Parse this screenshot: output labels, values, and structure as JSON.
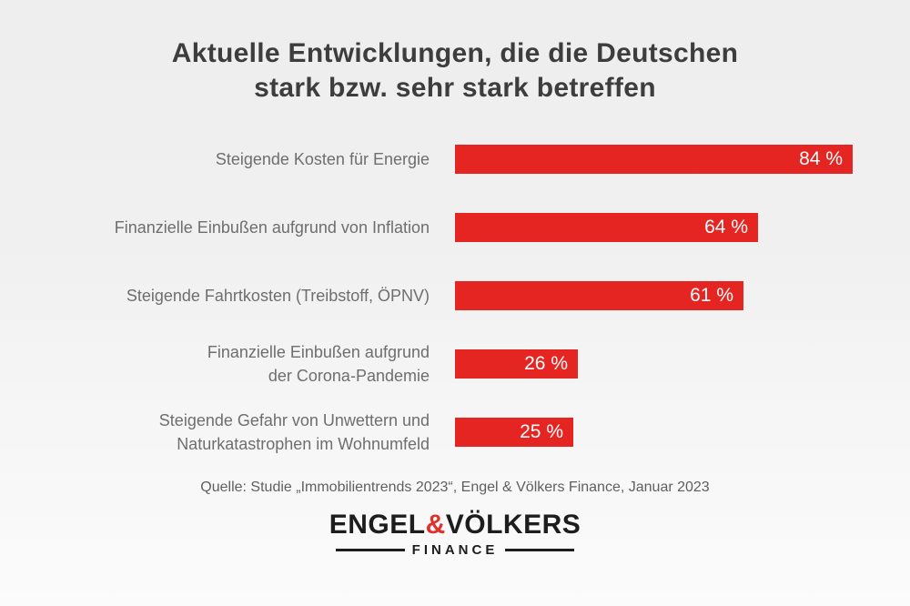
{
  "title": {
    "lines": [
      "Aktuelle Entwicklungen, die die Deutschen",
      "stark bzw. sehr stark betreffen"
    ]
  },
  "chart_data": {
    "type": "bar",
    "orientation": "horizontal",
    "title": "Aktuelle Entwicklungen, die die Deutschen stark bzw. sehr stark betreffen",
    "unit": "%",
    "xlim": [
      0,
      100
    ],
    "grid": false,
    "legend": false,
    "categories": [
      "Steigende Kosten für Energie",
      "Finanzielle Einbußen aufgrund von Inflation",
      "Steigende Fahrtkosten (Treibstoff, ÖPNV)",
      "Finanzielle Einbußen aufgrund der Corona-Pandemie",
      "Steigende Gefahr von Unwettern und Naturkatastrophen im Wohnumfeld"
    ],
    "values": [
      84,
      64,
      61,
      26,
      25
    ],
    "rows": [
      {
        "label_lines": [
          "Steigende Kosten für Energie"
        ],
        "value": 84,
        "value_label": "84 %"
      },
      {
        "label_lines": [
          "Finanzielle Einbußen aufgrund von Inflation"
        ],
        "value": 64,
        "value_label": "64 %"
      },
      {
        "label_lines": [
          "Steigende Fahrtkosten (Treibstoff, ÖPNV)"
        ],
        "value": 61,
        "value_label": "61 %"
      },
      {
        "label_lines": [
          "Finanzielle Einbußen aufgrund",
          "der Corona-Pandemie"
        ],
        "value": 26,
        "value_label": "26 %"
      },
      {
        "label_lines": [
          "Steigende Gefahr von Unwettern und",
          "Naturkatastrophen im Wohnumfeld"
        ],
        "value": 25,
        "value_label": "25 %"
      }
    ],
    "bar_color": "#e42522",
    "value_label_color": "#ffffff"
  },
  "source": "Quelle: Studie „Immobilientrends 2023“, Engel & Völkers Finance, Januar 2023",
  "logo": {
    "brand_left": "ENGEL",
    "ampersand": "&",
    "brand_right": "VÖLKERS",
    "subtitle": "FINANCE",
    "ampersand_color": "#e0302c",
    "text_color": "#1d1d1d"
  },
  "colors": {
    "accent_red": "#e42522",
    "title_text": "#3d3d3d",
    "label_text": "#6e6e6e",
    "source_text": "#5f5f5f"
  }
}
